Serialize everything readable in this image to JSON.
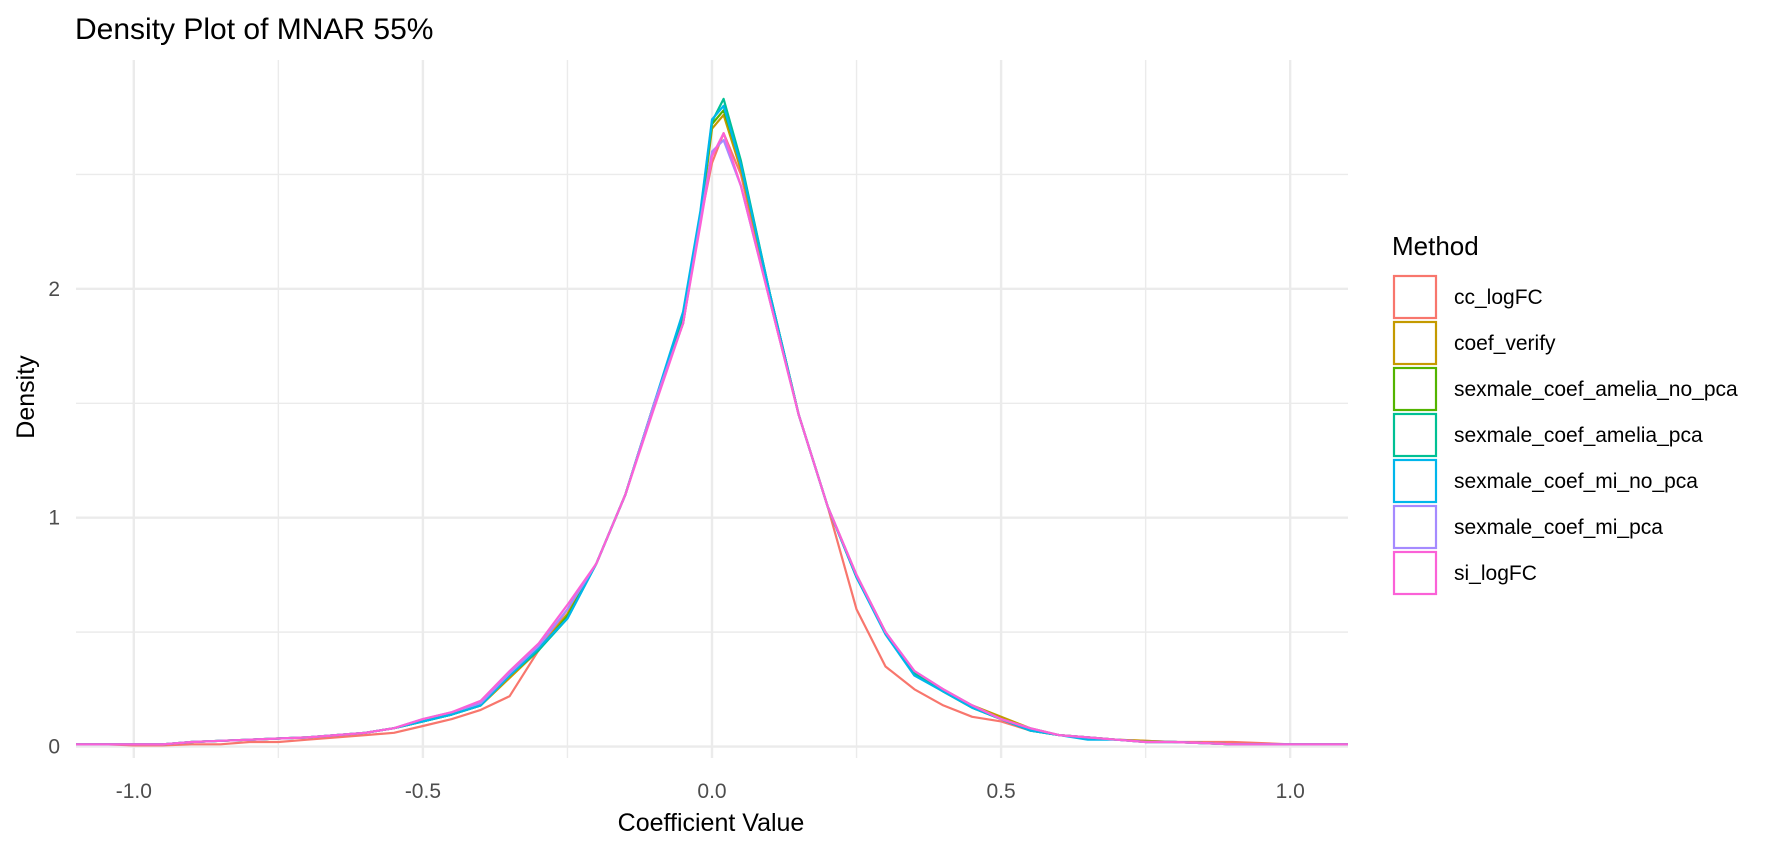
{
  "chart_data": {
    "type": "line",
    "title": "Density Plot of MNAR 55%",
    "xlabel": "Coefficient Value",
    "ylabel": "Density",
    "xlim": [
      -1.1,
      1.1
    ],
    "ylim": [
      -0.05,
      3.0
    ],
    "xticks": [
      -1.0,
      -0.5,
      0.0,
      0.5,
      1.0
    ],
    "xtick_labels": [
      "-1.0",
      "-0.5",
      "0.0",
      "0.5",
      "1.0"
    ],
    "yticks": [
      0,
      1,
      2
    ],
    "ytick_labels": [
      "0",
      "1",
      "2"
    ],
    "y_minor_ticks": [
      0.5,
      1.5,
      2.5
    ],
    "x_minor_ticks": [
      -0.75,
      -0.25,
      0.25,
      0.75
    ],
    "grid": true,
    "legend": {
      "title": "Method",
      "position": "right"
    },
    "x": [
      -1.1,
      -1.05,
      -1.0,
      -0.95,
      -0.9,
      -0.85,
      -0.8,
      -0.75,
      -0.7,
      -0.65,
      -0.6,
      -0.55,
      -0.5,
      -0.45,
      -0.4,
      -0.35,
      -0.3,
      -0.25,
      -0.2,
      -0.15,
      -0.1,
      -0.05,
      -0.02,
      0.0,
      0.02,
      0.05,
      0.1,
      0.15,
      0.2,
      0.25,
      0.3,
      0.35,
      0.4,
      0.45,
      0.5,
      0.55,
      0.6,
      0.65,
      0.7,
      0.75,
      0.8,
      0.85,
      0.9,
      0.95,
      1.0,
      1.05,
      1.1
    ],
    "series": [
      {
        "name": "cc_logFC",
        "color": "#F8766D",
        "values": [
          0.01,
          0.01,
          0.005,
          0.005,
          0.01,
          0.01,
          0.02,
          0.02,
          0.03,
          0.04,
          0.05,
          0.06,
          0.09,
          0.12,
          0.16,
          0.22,
          0.42,
          0.6,
          0.8,
          1.1,
          1.5,
          1.85,
          2.3,
          2.55,
          2.68,
          2.5,
          1.95,
          1.45,
          1.05,
          0.6,
          0.35,
          0.25,
          0.18,
          0.13,
          0.11,
          0.07,
          0.05,
          0.04,
          0.03,
          0.025,
          0.02,
          0.02,
          0.02,
          0.015,
          0.01,
          0.01,
          0.01
        ]
      },
      {
        "name": "coef_verify",
        "color": "#C49A00",
        "values": [
          0.01,
          0.01,
          0.01,
          0.01,
          0.02,
          0.025,
          0.03,
          0.035,
          0.04,
          0.05,
          0.06,
          0.08,
          0.11,
          0.14,
          0.18,
          0.3,
          0.42,
          0.58,
          0.8,
          1.1,
          1.5,
          1.85,
          2.3,
          2.7,
          2.76,
          2.52,
          1.98,
          1.45,
          1.05,
          0.75,
          0.5,
          0.32,
          0.25,
          0.18,
          0.13,
          0.08,
          0.05,
          0.04,
          0.03,
          0.025,
          0.02,
          0.015,
          0.01,
          0.01,
          0.01,
          0.01,
          0.01
        ]
      },
      {
        "name": "sexmale_coef_amelia_no_pca",
        "color": "#53B400",
        "values": [
          0.01,
          0.01,
          0.01,
          0.01,
          0.02,
          0.025,
          0.03,
          0.035,
          0.04,
          0.05,
          0.06,
          0.08,
          0.11,
          0.14,
          0.18,
          0.31,
          0.42,
          0.57,
          0.8,
          1.1,
          1.5,
          1.87,
          2.32,
          2.72,
          2.78,
          2.55,
          1.98,
          1.45,
          1.05,
          0.74,
          0.5,
          0.32,
          0.24,
          0.17,
          0.12,
          0.07,
          0.05,
          0.04,
          0.03,
          0.02,
          0.02,
          0.015,
          0.01,
          0.01,
          0.01,
          0.01,
          0.01
        ]
      },
      {
        "name": "sexmale_coef_amelia_pca",
        "color": "#00C094",
        "values": [
          0.01,
          0.01,
          0.01,
          0.01,
          0.02,
          0.025,
          0.03,
          0.035,
          0.04,
          0.05,
          0.06,
          0.08,
          0.11,
          0.14,
          0.18,
          0.31,
          0.42,
          0.56,
          0.8,
          1.1,
          1.5,
          1.88,
          2.33,
          2.73,
          2.83,
          2.56,
          1.98,
          1.45,
          1.05,
          0.74,
          0.5,
          0.32,
          0.24,
          0.17,
          0.12,
          0.07,
          0.05,
          0.04,
          0.03,
          0.02,
          0.02,
          0.015,
          0.01,
          0.01,
          0.01,
          0.01,
          0.01
        ]
      },
      {
        "name": "sexmale_coef_mi_no_pca",
        "color": "#00B6EB",
        "values": [
          0.01,
          0.01,
          0.01,
          0.01,
          0.02,
          0.025,
          0.03,
          0.035,
          0.04,
          0.05,
          0.06,
          0.08,
          0.11,
          0.14,
          0.18,
          0.31,
          0.43,
          0.56,
          0.8,
          1.1,
          1.5,
          1.9,
          2.34,
          2.74,
          2.8,
          2.54,
          1.98,
          1.45,
          1.05,
          0.74,
          0.49,
          0.31,
          0.24,
          0.17,
          0.12,
          0.07,
          0.05,
          0.03,
          0.03,
          0.02,
          0.02,
          0.015,
          0.01,
          0.01,
          0.01,
          0.01,
          0.01
        ]
      },
      {
        "name": "sexmale_coef_mi_pca",
        "color": "#A58AFF",
        "values": [
          0.01,
          0.01,
          0.01,
          0.01,
          0.02,
          0.025,
          0.03,
          0.035,
          0.04,
          0.05,
          0.06,
          0.08,
          0.12,
          0.15,
          0.19,
          0.32,
          0.44,
          0.6,
          0.8,
          1.1,
          1.5,
          1.85,
          2.3,
          2.6,
          2.65,
          2.45,
          1.95,
          1.45,
          1.05,
          0.75,
          0.5,
          0.33,
          0.25,
          0.18,
          0.12,
          0.08,
          0.05,
          0.04,
          0.03,
          0.02,
          0.02,
          0.015,
          0.01,
          0.01,
          0.01,
          0.01,
          0.01
        ]
      },
      {
        "name": "si_logFC",
        "color": "#FB61D7",
        "values": [
          0.01,
          0.01,
          0.01,
          0.01,
          0.02,
          0.025,
          0.03,
          0.035,
          0.04,
          0.05,
          0.06,
          0.08,
          0.12,
          0.15,
          0.2,
          0.33,
          0.45,
          0.62,
          0.8,
          1.1,
          1.48,
          1.85,
          2.28,
          2.58,
          2.68,
          2.45,
          1.95,
          1.45,
          1.05,
          0.75,
          0.5,
          0.33,
          0.25,
          0.18,
          0.12,
          0.08,
          0.05,
          0.04,
          0.03,
          0.02,
          0.02,
          0.015,
          0.01,
          0.01,
          0.01,
          0.01,
          0.01
        ]
      }
    ]
  }
}
